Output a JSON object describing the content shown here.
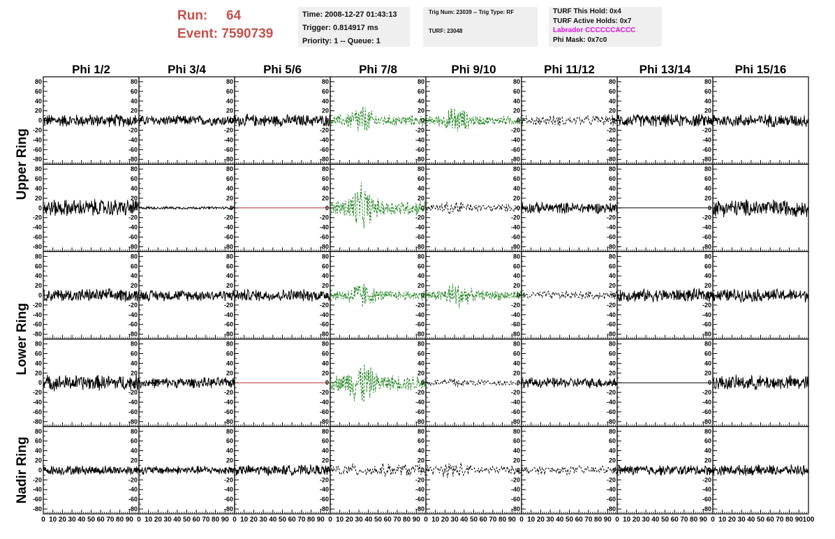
{
  "header": {
    "run_label": "Run:",
    "run_value": "64",
    "event_label": "Event:",
    "event_value": "7590739"
  },
  "info1": {
    "time": "Time: 2008-12-27 01:43:13",
    "trigger": "Trigger: 0.814917 ms",
    "priority": "Priority: 1 -- Queue: 1"
  },
  "info2": {
    "trig": "Trig Num: 23039 -- Trig Type: RF",
    "turf": "TURF: 23048"
  },
  "info3": {
    "hold": "TURF This Hold: 0x4",
    "active": "TURF Active Holds: 0x7",
    "labrador": "Labrador CCCCCCACCC",
    "mask": "Phi Mask: 0x7c0"
  },
  "colors": {
    "red_text": "#c8504a",
    "green_trace": "#2a8a2a",
    "black_trace": "#000000",
    "flat_red": "#b03030",
    "magenta": "#e010e0"
  },
  "chart_data": {
    "type": "line",
    "columns": [
      "Phi 1/2",
      "Phi 3/4",
      "Phi 5/6",
      "Phi 7/8",
      "Phi 9/10",
      "Phi 11/12",
      "Phi 13/14",
      "Phi 15/16"
    ],
    "rings": [
      {
        "name": "Upper Ring",
        "rows": 2
      },
      {
        "name": "Lower Ring",
        "rows": 2
      },
      {
        "name": "Nadir Ring",
        "rows": 1
      }
    ],
    "ylim": [
      -90,
      90
    ],
    "xlim": [
      0,
      100
    ],
    "y_ticks": [
      -80,
      -60,
      -40,
      -20,
      0,
      20,
      40,
      60,
      80
    ],
    "x_tick_labels": [
      "0",
      "10",
      "20",
      "30",
      "40",
      "50",
      "60",
      "70",
      "80",
      "90",
      "100"
    ],
    "panels": [
      [
        "solid",
        "solid",
        "solid",
        "green",
        "green",
        "dashed",
        "solid",
        "solid"
      ],
      [
        "solid",
        "small",
        "flatred",
        "green",
        "dashed",
        "solid",
        "flatblack",
        "solid"
      ],
      [
        "solid",
        "solid",
        "solid",
        "green",
        "green",
        "dashed",
        "solid",
        "solid"
      ],
      [
        "solid",
        "solid",
        "flatred",
        "green",
        "dashed",
        "solid",
        "flatblack",
        "solid"
      ],
      [
        "solid",
        "solid",
        "solid",
        "dashed",
        "dashed",
        "dashed",
        "solid",
        "solid"
      ]
    ],
    "amplitudes": [
      [
        15,
        12,
        14,
        28,
        25,
        12,
        15,
        15
      ],
      [
        20,
        3,
        0,
        40,
        15,
        13,
        0,
        20
      ],
      [
        15,
        13,
        14,
        25,
        25,
        10,
        15,
        15
      ],
      [
        18,
        12,
        0,
        40,
        12,
        12,
        0,
        17
      ],
      [
        11,
        10,
        12,
        15,
        17,
        10,
        12,
        12
      ]
    ]
  }
}
